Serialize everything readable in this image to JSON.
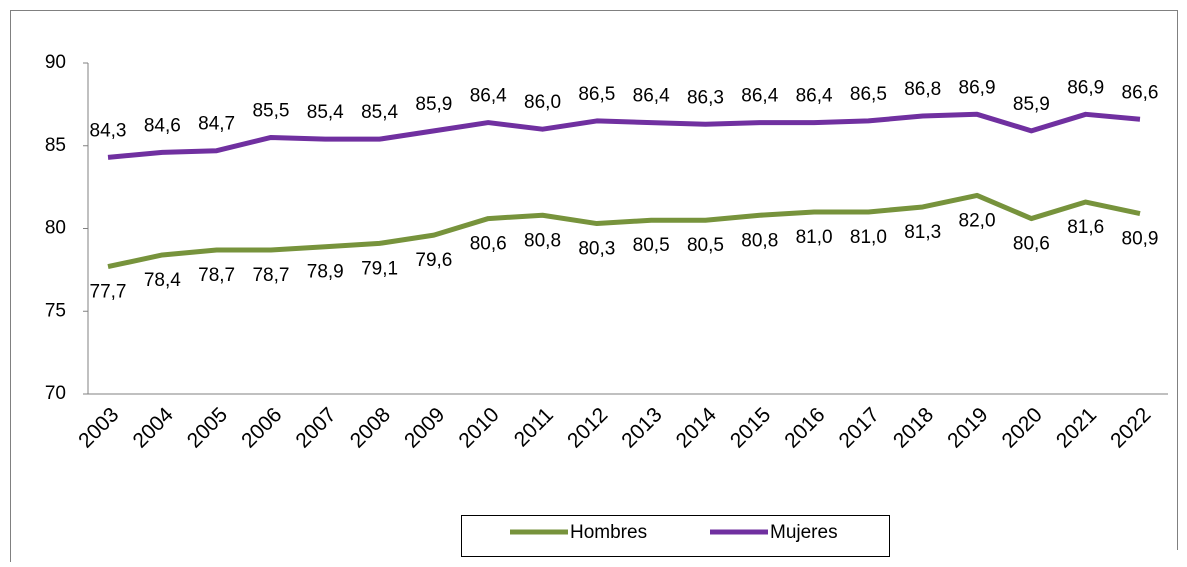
{
  "chart_data": {
    "type": "line",
    "categories": [
      "2003",
      "2004",
      "2005",
      "2006",
      "2007",
      "2008",
      "2009",
      "2010",
      "2011",
      "2012",
      "2013",
      "2014",
      "2015",
      "2016",
      "2017",
      "2018",
      "2019",
      "2020",
      "2021",
      "2022"
    ],
    "series": [
      {
        "name": "Hombres",
        "color": "#77933c",
        "values": [
          77.7,
          78.4,
          78.7,
          78.7,
          78.9,
          79.1,
          79.6,
          80.6,
          80.8,
          80.3,
          80.5,
          80.5,
          80.8,
          81.0,
          81.0,
          81.3,
          82.0,
          80.6,
          81.6,
          80.9
        ],
        "value_labels": [
          "77,7",
          "78,4",
          "78,7",
          "78,7",
          "78,9",
          "79,1",
          "79,6",
          "80,6",
          "80,8",
          "80,3",
          "80,5",
          "80,5",
          "80,8",
          "81,0",
          "81,0",
          "81,3",
          "82,0",
          "80,6",
          "81,6",
          "80,9"
        ]
      },
      {
        "name": "Mujeres",
        "color": "#7030a0",
        "values": [
          84.3,
          84.6,
          84.7,
          85.5,
          85.4,
          85.4,
          85.9,
          86.4,
          86.0,
          86.5,
          86.4,
          86.3,
          86.4,
          86.4,
          86.5,
          86.8,
          86.9,
          85.9,
          86.9,
          86.6
        ],
        "value_labels": [
          "84,3",
          "84,6",
          "84,7",
          "85,5",
          "85,4",
          "85,4",
          "85,9",
          "86,4",
          "86,0",
          "86,5",
          "86,4",
          "86,3",
          "86,4",
          "86,4",
          "86,5",
          "86,8",
          "86,9",
          "85,9",
          "86,9",
          "86,6"
        ]
      }
    ],
    "ylim": [
      70,
      90
    ],
    "yticks": [
      70,
      75,
      80,
      85,
      90
    ],
    "grid": false,
    "legend": "bottom"
  }
}
